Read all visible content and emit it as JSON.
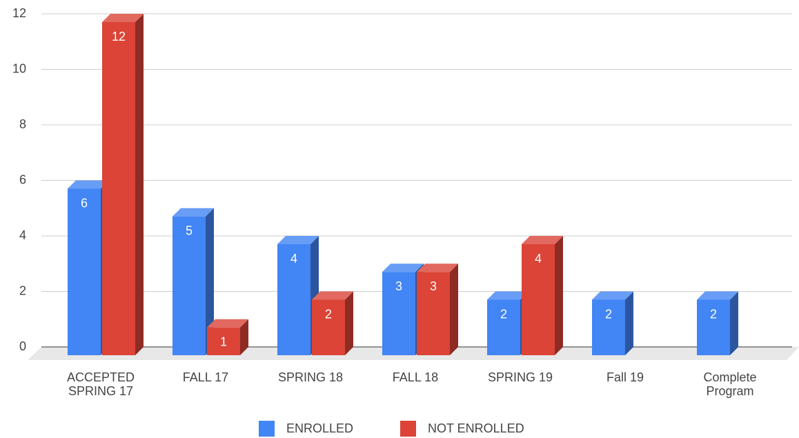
{
  "chart_data": {
    "type": "bar3d",
    "categories": [
      "ACCEPTED SPRING 17",
      "FALL 17",
      "SPRING 18",
      "FALL 18",
      "SPRING 19",
      "Fall 19",
      "Complete Program"
    ],
    "series": [
      {
        "name": "ENROLLED",
        "color": "#4285f4",
        "values": [
          6,
          5,
          4,
          3,
          2,
          2,
          2
        ]
      },
      {
        "name": "NOT ENROLLED",
        "color": "#db4437",
        "values": [
          12,
          1,
          2,
          3,
          4,
          null,
          null
        ]
      }
    ],
    "ylim": [
      0,
      12
    ],
    "yticks": [
      0,
      2,
      4,
      6,
      8,
      10,
      12
    ],
    "grid": true,
    "legend": "bottom"
  }
}
